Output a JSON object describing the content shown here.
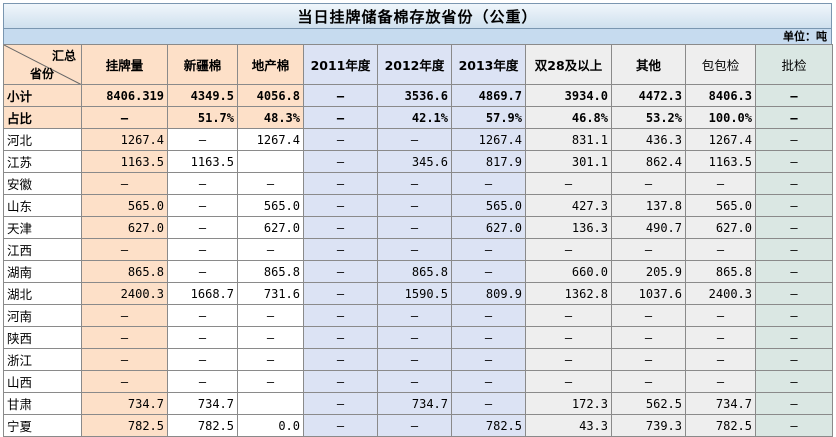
{
  "title": "当日挂牌储备棉存放省份（公重）",
  "unit": "单位：吨",
  "corner": {
    "top": "汇总",
    "bottom": "省份"
  },
  "columns": [
    "挂牌量",
    "新疆棉",
    "地产棉",
    "2011年度",
    "2012年度",
    "2013年度",
    "双28及以上",
    "其他",
    "包包检",
    "批检"
  ],
  "dash": "—",
  "rows": [
    {
      "name": "小计",
      "cells": [
        "8406.319",
        "4349.5",
        "4056.8",
        "—",
        "3536.6",
        "4869.7",
        "3934.0",
        "4472.3",
        "8406.3",
        "—"
      ]
    },
    {
      "name": "占比",
      "cells": [
        "—",
        "51.7%",
        "48.3%",
        "—",
        "42.1%",
        "57.9%",
        "46.8%",
        "53.2%",
        "100.0%",
        "—"
      ]
    },
    {
      "name": "河北",
      "cells": [
        "1267.4",
        "—",
        "1267.4",
        "—",
        "—",
        "1267.4",
        "831.1",
        "436.3",
        "1267.4",
        "—"
      ]
    },
    {
      "name": "江苏",
      "cells": [
        "1163.5",
        "1163.5",
        "",
        "—",
        "345.6",
        "817.9",
        "301.1",
        "862.4",
        "1163.5",
        "—"
      ]
    },
    {
      "name": "安徽",
      "cells": [
        "—",
        "—",
        "—",
        "—",
        "—",
        "—",
        "—",
        "—",
        "—",
        "—"
      ]
    },
    {
      "name": "山东",
      "cells": [
        "565.0",
        "—",
        "565.0",
        "—",
        "—",
        "565.0",
        "427.3",
        "137.8",
        "565.0",
        "—"
      ]
    },
    {
      "name": "天津",
      "cells": [
        "627.0",
        "—",
        "627.0",
        "—",
        "—",
        "627.0",
        "136.3",
        "490.7",
        "627.0",
        "—"
      ]
    },
    {
      "name": "江西",
      "cells": [
        "—",
        "—",
        "—",
        "—",
        "—",
        "—",
        "—",
        "—",
        "—",
        "—"
      ]
    },
    {
      "name": "湖南",
      "cells": [
        "865.8",
        "—",
        "865.8",
        "—",
        "865.8",
        "—",
        "660.0",
        "205.9",
        "865.8",
        "—"
      ]
    },
    {
      "name": "湖北",
      "cells": [
        "2400.3",
        "1668.7",
        "731.6",
        "—",
        "1590.5",
        "809.9",
        "1362.8",
        "1037.6",
        "2400.3",
        "—"
      ]
    },
    {
      "name": "河南",
      "cells": [
        "—",
        "—",
        "—",
        "—",
        "—",
        "—",
        "—",
        "—",
        "—",
        "—"
      ]
    },
    {
      "name": "陕西",
      "cells": [
        "—",
        "—",
        "—",
        "—",
        "—",
        "—",
        "—",
        "—",
        "—",
        "—"
      ]
    },
    {
      "name": "浙江",
      "cells": [
        "—",
        "—",
        "—",
        "—",
        "—",
        "—",
        "—",
        "—",
        "—",
        "—"
      ]
    },
    {
      "name": "山西",
      "cells": [
        "—",
        "—",
        "—",
        "—",
        "—",
        "—",
        "—",
        "—",
        "—",
        "—"
      ]
    },
    {
      "name": "甘肃",
      "cells": [
        "734.7",
        "734.7",
        "",
        "—",
        "734.7",
        "—",
        "172.3",
        "562.5",
        "734.7",
        "—"
      ]
    },
    {
      "name": "宁夏",
      "cells": [
        "782.5",
        "782.5",
        "0.0",
        "—",
        "—",
        "782.5",
        "43.3",
        "739.3",
        "782.5",
        "—"
      ]
    }
  ]
}
